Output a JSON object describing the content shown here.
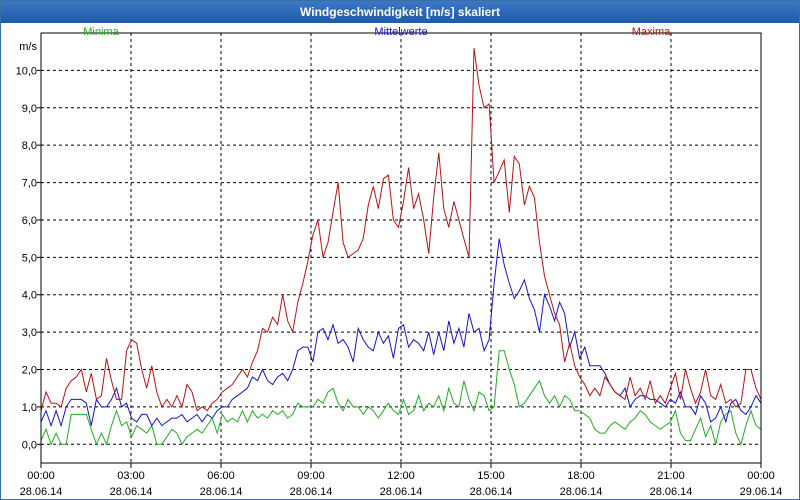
{
  "window": {
    "title": "Windgeschwindigkeit [m/s] skaliert"
  },
  "chart_data": {
    "type": "line",
    "title": "Windgeschwindigkeit [m/s] skaliert",
    "ylabel": "m/s",
    "ylim": [
      -0.5,
      11.0
    ],
    "xlim_hours": [
      0,
      24
    ],
    "yticks": [
      0,
      1,
      2,
      3,
      4,
      5,
      6,
      7,
      8,
      9,
      10
    ],
    "ytick_labels": [
      "0,0",
      "1,0",
      "2,0",
      "3,0",
      "4,0",
      "5,0",
      "6,0",
      "7,0",
      "8,0",
      "9,0",
      "10,0"
    ],
    "xticks": [
      {
        "hour": 0,
        "time": "00:00",
        "date": "28.06.14"
      },
      {
        "hour": 3,
        "time": "03:00",
        "date": "28.06.14"
      },
      {
        "hour": 6,
        "time": "06:00",
        "date": "28.06.14"
      },
      {
        "hour": 9,
        "time": "09:00",
        "date": "28.06.14"
      },
      {
        "hour": 12,
        "time": "12:00",
        "date": "28.06.14"
      },
      {
        "hour": 15,
        "time": "15:00",
        "date": "28.06.14"
      },
      {
        "hour": 18,
        "time": "18:00",
        "date": "28.06.14"
      },
      {
        "hour": 21,
        "time": "21:00",
        "date": "28.06.14"
      },
      {
        "hour": 24,
        "time": "00:00",
        "date": "29.06.14"
      }
    ],
    "grid": true,
    "series": [
      {
        "name": "Minima",
        "color": "#22aa22",
        "values": [
          0.1,
          0.4,
          0.0,
          0.3,
          0.0,
          0.0,
          0.8,
          0.8,
          0.8,
          0.8,
          0.4,
          0.0,
          0.3,
          0.0,
          0.5,
          0.9,
          0.5,
          0.6,
          0.2,
          0.5,
          0.4,
          0.3,
          0.5,
          0.0,
          0.0,
          0.2,
          0.4,
          0.3,
          0.0,
          0.2,
          0.3,
          0.4,
          0.3,
          0.5,
          0.7,
          0.3,
          0.8,
          0.6,
          0.7,
          0.6,
          0.9,
          0.6,
          0.9,
          0.7,
          0.8,
          0.7,
          0.9,
          0.8,
          0.9,
          0.7,
          0.8,
          1.1,
          1.0,
          1.0,
          1.0,
          1.2,
          1.1,
          1.4,
          1.5,
          1.1,
          0.9,
          1.2,
          1.0,
          1.0,
          0.8,
          1.0,
          0.9,
          0.7,
          0.9,
          1.1,
          0.9,
          0.8,
          1.2,
          0.8,
          0.9,
          1.3,
          0.9,
          1.1,
          1.0,
          1.3,
          0.9,
          1.5,
          1.1,
          1.0,
          1.7,
          1.2,
          0.9,
          1.4,
          1.3,
          0.9,
          1.0,
          2.5,
          2.5,
          2.0,
          1.6,
          1.0,
          1.1,
          1.3,
          1.5,
          1.7,
          1.3,
          1.1,
          1.3,
          1.0,
          1.3,
          1.2,
          0.9,
          0.9,
          0.8,
          0.7,
          0.4,
          0.3,
          0.3,
          0.5,
          0.6,
          0.5,
          0.4,
          0.6,
          0.7,
          0.9,
          0.8,
          0.6,
          0.5,
          0.4,
          0.5,
          0.6,
          0.9,
          0.3,
          0.1,
          0.1,
          0.4,
          0.7,
          0.2,
          0.5,
          0.0,
          0.6,
          0.8,
          0.9,
          0.3,
          0.0,
          0.5,
          0.9,
          0.5,
          0.4
        ]
      },
      {
        "name": "Mittelwerte",
        "color": "#1414c8",
        "values": [
          0.6,
          0.9,
          0.5,
          0.9,
          0.5,
          1.0,
          1.2,
          1.2,
          1.2,
          1.1,
          0.5,
          1.2,
          1.0,
          1.0,
          1.2,
          1.5,
          1.0,
          1.1,
          0.7,
          0.6,
          0.8,
          0.8,
          0.5,
          0.7,
          0.5,
          0.6,
          0.7,
          0.7,
          0.8,
          0.6,
          0.7,
          0.8,
          0.6,
          0.8,
          0.7,
          0.9,
          1.0,
          1.0,
          1.2,
          1.3,
          1.4,
          1.5,
          1.8,
          1.7,
          2.0,
          1.7,
          1.6,
          1.8,
          1.9,
          1.7,
          2.0,
          2.5,
          2.6,
          2.6,
          2.2,
          3.0,
          3.1,
          2.8,
          3.2,
          2.7,
          2.8,
          2.6,
          2.2,
          3.1,
          2.8,
          2.6,
          2.5,
          3.0,
          2.7,
          2.9,
          2.3,
          3.1,
          3.2,
          2.6,
          2.8,
          2.7,
          2.5,
          3.0,
          2.4,
          3.0,
          2.5,
          3.3,
          2.7,
          3.1,
          2.6,
          3.5,
          3.0,
          3.1,
          2.5,
          2.8,
          4.3,
          5.5,
          4.8,
          4.3,
          3.9,
          4.1,
          4.4,
          3.9,
          3.6,
          3.0,
          4.0,
          3.7,
          3.3,
          3.8,
          3.5,
          2.6,
          3.0,
          2.3,
          2.6,
          2.1,
          2.1,
          2.1,
          1.9,
          1.6,
          1.4,
          1.3,
          1.5,
          1.0,
          1.2,
          1.3,
          1.3,
          1.2,
          1.2,
          1.1,
          1.0,
          1.2,
          1.1,
          1.4,
          1.0,
          1.0,
          0.8,
          1.3,
          1.1,
          0.6,
          0.7,
          1.0,
          0.6,
          1.1,
          1.2,
          0.9,
          0.8,
          1.0,
          1.3,
          1.1
        ]
      },
      {
        "name": "Maxima",
        "color": "#b41414",
        "values": [
          0.9,
          1.4,
          1.1,
          1.1,
          1.0,
          1.5,
          1.7,
          1.8,
          2.0,
          1.4,
          1.9,
          1.2,
          1.3,
          2.3,
          1.7,
          1.2,
          1.2,
          2.5,
          2.8,
          2.7,
          2.0,
          1.5,
          2.1,
          1.4,
          1.0,
          1.2,
          1.0,
          1.3,
          1.0,
          1.6,
          1.4,
          0.9,
          1.0,
          0.9,
          1.1,
          1.2,
          1.4,
          1.5,
          1.6,
          1.8,
          2.0,
          1.8,
          2.2,
          2.5,
          3.1,
          3.0,
          3.4,
          3.2,
          4.0,
          3.3,
          3.0,
          3.8,
          4.3,
          4.9,
          5.6,
          6.0,
          5.0,
          5.4,
          6.2,
          7.0,
          5.4,
          5.0,
          5.1,
          5.2,
          5.5,
          6.4,
          6.9,
          6.3,
          7.1,
          7.2,
          6.0,
          5.8,
          6.5,
          7.4,
          6.3,
          6.7,
          6.0,
          5.1,
          6.6,
          7.8,
          6.3,
          5.8,
          6.5,
          6.0,
          5.5,
          5.0,
          10.6,
          9.6,
          9.0,
          9.1,
          7.0,
          7.3,
          7.6,
          6.2,
          7.7,
          7.5,
          6.4,
          6.9,
          6.6,
          5.4,
          4.5,
          4.0,
          3.5,
          3.2,
          2.2,
          2.7,
          2.1,
          1.8,
          1.6,
          1.3,
          1.5,
          1.3,
          1.8,
          1.6,
          1.4,
          1.3,
          1.2,
          1.8,
          1.3,
          1.5,
          1.2,
          1.7,
          1.1,
          1.3,
          1.1,
          1.5,
          1.9,
          1.2,
          2.0,
          1.5,
          1.1,
          1.4,
          2.0,
          1.3,
          1.2,
          1.6,
          1.1,
          1.2,
          1.0,
          1.1,
          2.0,
          2.0,
          1.5,
          1.2
        ]
      }
    ]
  }
}
